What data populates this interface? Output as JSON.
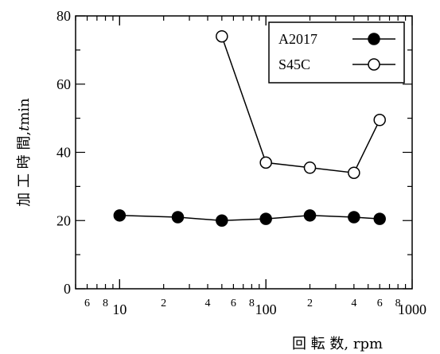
{
  "chart_data": {
    "type": "scatter",
    "title": "",
    "xlabel": "回 転 数,  rpm",
    "ylabel_main": "加 工 時 間,",
    "ylabel_var": "t",
    "ylabel_unit": " min",
    "xscale": "log",
    "xlim": [
      5,
      1000
    ],
    "ylim": [
      0,
      80
    ],
    "x_major_ticks": [
      {
        "value": 10,
        "label": "10"
      },
      {
        "value": 100,
        "label": "100"
      },
      {
        "value": 1000,
        "label": "1000"
      }
    ],
    "x_minor_labels": [
      {
        "value": 6,
        "label": "6"
      },
      {
        "value": 8,
        "label": "8"
      },
      {
        "value": 20,
        "label": "2"
      },
      {
        "value": 40,
        "label": "4"
      },
      {
        "value": 60,
        "label": "6"
      },
      {
        "value": 80,
        "label": "8"
      },
      {
        "value": 200,
        "label": "2"
      },
      {
        "value": 400,
        "label": "4"
      },
      {
        "value": 600,
        "label": "6"
      },
      {
        "value": 800,
        "label": "8"
      }
    ],
    "y_ticks": [
      {
        "value": 0,
        "label": "0"
      },
      {
        "value": 20,
        "label": "20"
      },
      {
        "value": 40,
        "label": "40"
      },
      {
        "value": 60,
        "label": "60"
      },
      {
        "value": 80,
        "label": "80"
      }
    ],
    "legend_position": "top-right",
    "series": [
      {
        "name": "A2017",
        "marker": "filled-circle",
        "x": [
          10,
          25,
          50,
          100,
          200,
          400,
          600
        ],
        "y": [
          21.5,
          21,
          20,
          20.5,
          21.5,
          21,
          20.5
        ]
      },
      {
        "name": "S45C",
        "marker": "open-circle",
        "x": [
          50,
          100,
          200,
          400,
          600
        ],
        "y": [
          74,
          37,
          35.5,
          34,
          49.5
        ]
      }
    ]
  }
}
